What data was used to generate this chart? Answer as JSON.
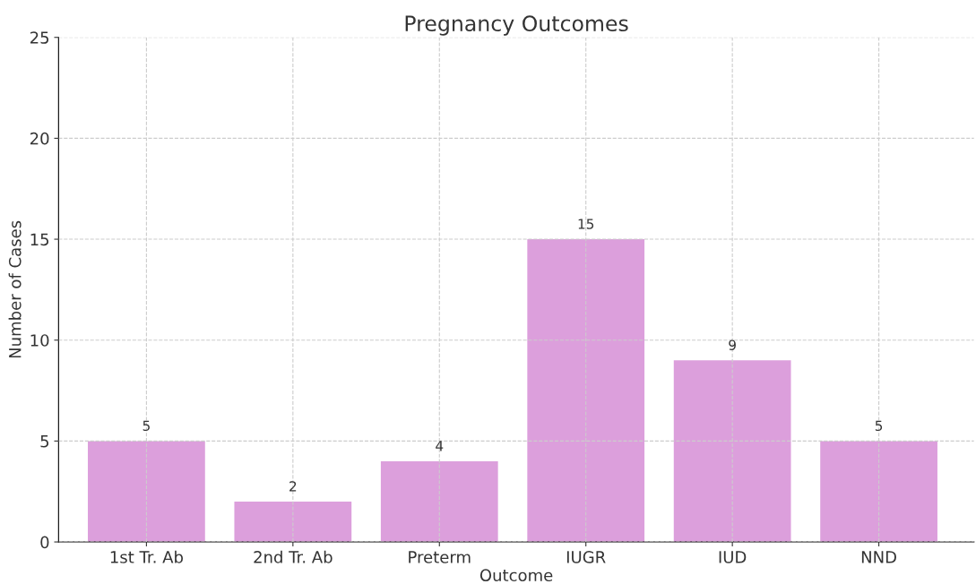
{
  "chart_data": {
    "type": "bar",
    "title": "Pregnancy Outcomes",
    "xlabel": "Outcome",
    "ylabel": "Number of Cases",
    "categories": [
      "1st Tr. Ab",
      "2nd Tr. Ab",
      "Preterm",
      "IUGR",
      "IUD",
      "NND"
    ],
    "values": [
      5,
      2,
      4,
      15,
      9,
      5
    ],
    "color": "#dc9fdc",
    "ylim": [
      0,
      25
    ],
    "yticks": [
      0,
      5,
      10,
      15,
      20,
      25
    ],
    "grid": true,
    "data_labels": true
  }
}
